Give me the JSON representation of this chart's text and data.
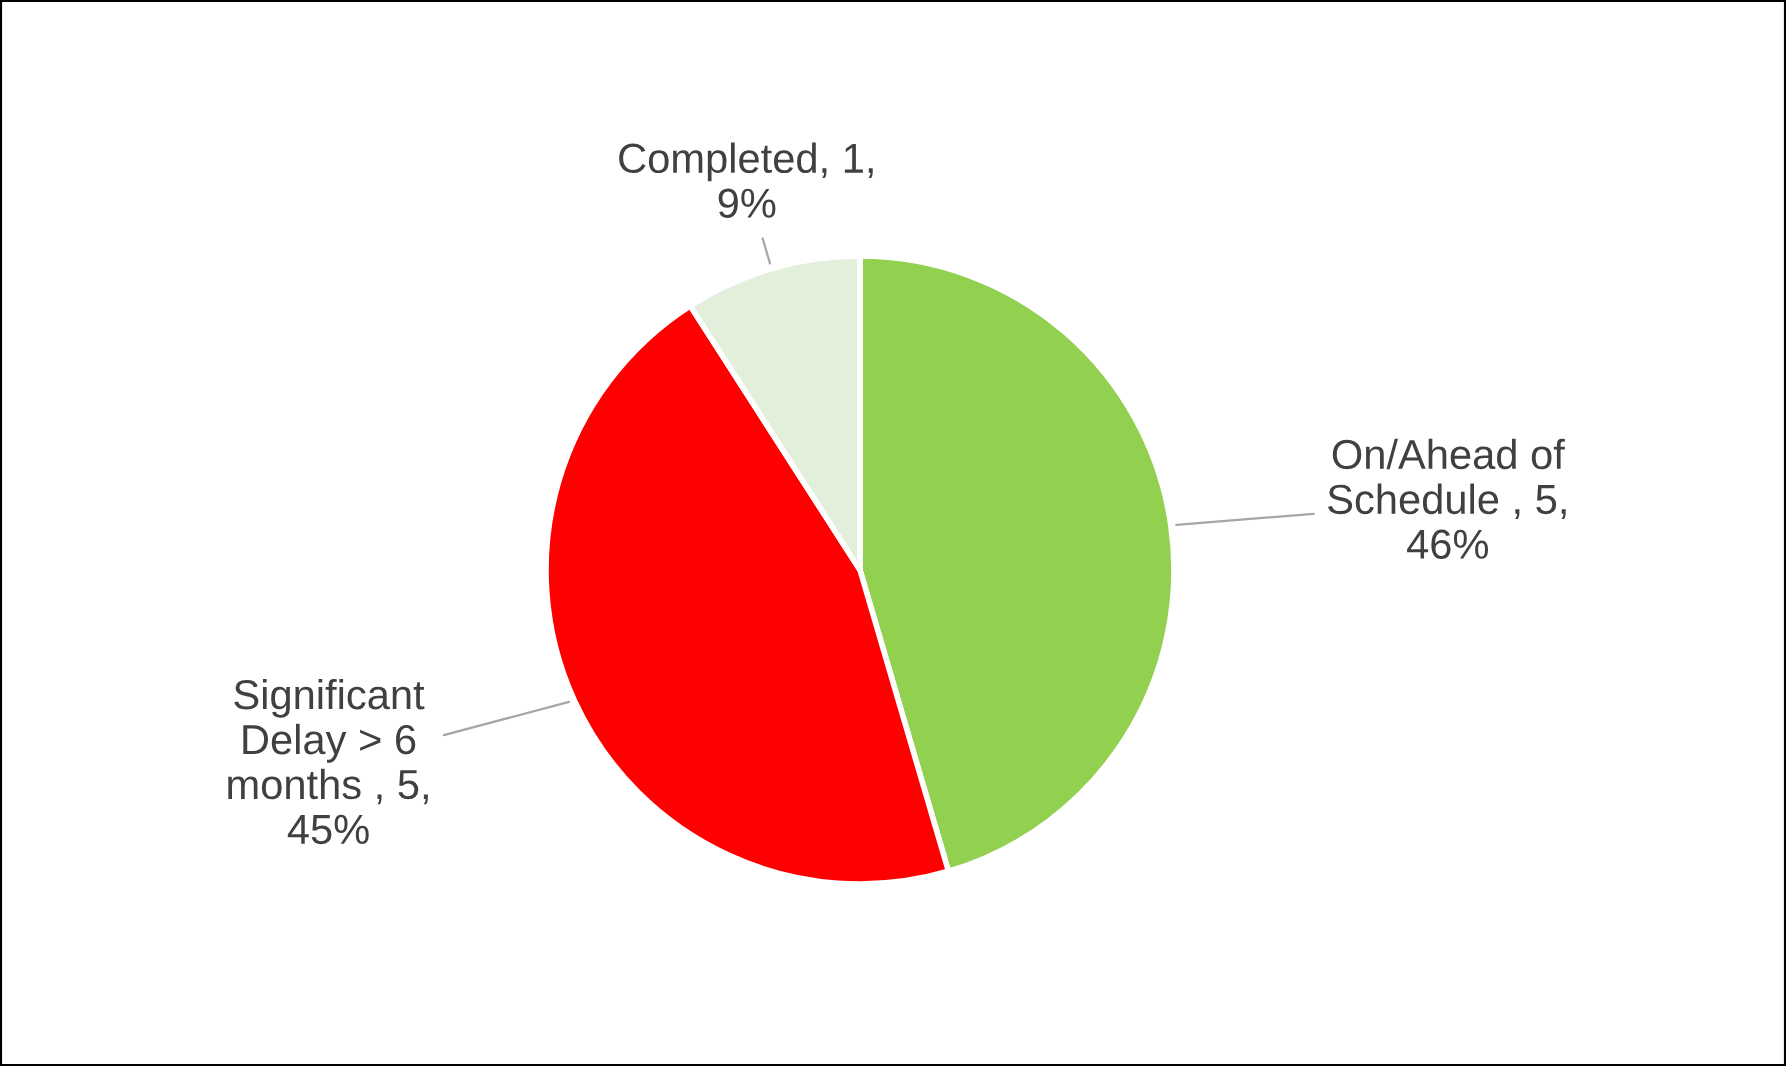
{
  "chart_data": {
    "type": "pie",
    "categories": [
      "On/Ahead of Schedule ",
      "Significant Delay > 6 months ",
      "Completed"
    ],
    "values": [
      5,
      5,
      1
    ],
    "value_labels": [
      "5, 46%",
      "5, 45%",
      "1, 9%"
    ],
    "colors": [
      "#92d050",
      "#ff0000",
      "#e2efda"
    ],
    "legend": false
  }
}
